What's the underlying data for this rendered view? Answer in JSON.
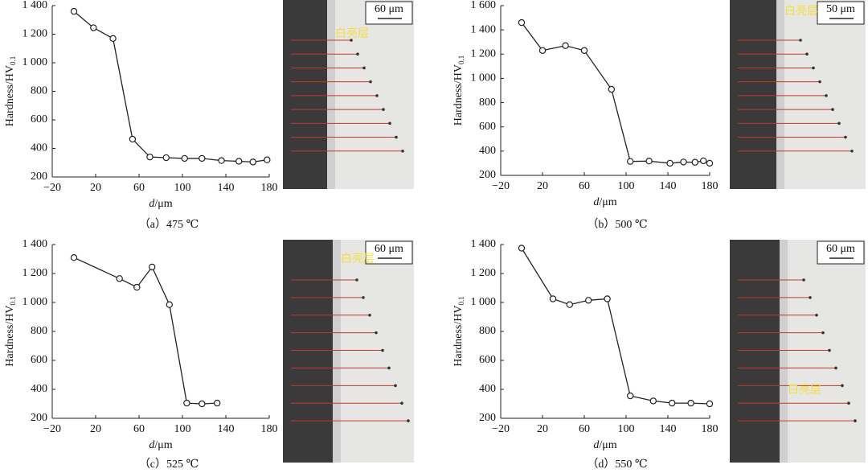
{
  "chart_data": [
    {
      "type": "line",
      "caption": "（a）475 ℃",
      "xlabel_var": "d",
      "xlabel_unit": "/μm",
      "ylabel": "Hardness/HV",
      "ylabel_subscript": "0.1",
      "scale_bar": "60 μm",
      "layer_label": "白亮层",
      "x": [
        0,
        18,
        36,
        54,
        70,
        85,
        102,
        118,
        136,
        152,
        165,
        178
      ],
      "series": [
        {
          "color": "#222222",
          "values": [
            1360,
            1245,
            1170,
            465,
            340,
            335,
            330,
            330,
            315,
            310,
            305,
            320
          ]
        }
      ],
      "xlim": [
        -20,
        180
      ],
      "xticks": [
        {
          "value": -20,
          "label": "−20"
        },
        20,
        60,
        100,
        140,
        180
      ],
      "ylim": [
        200,
        1400
      ],
      "yticks": [
        200,
        400,
        600,
        800,
        {
          "value": 1000,
          "label": "1 000"
        },
        {
          "value": 1200,
          "label": "1 200"
        },
        {
          "value": 1400,
          "label": "1 400"
        }
      ]
    },
    {
      "type": "line",
      "caption": "（b）500 ℃",
      "xlabel_var": "d",
      "xlabel_unit": "/μm",
      "ylabel": "Hardness/HV",
      "ylabel_subscript": "0.1",
      "scale_bar": "50 μm",
      "layer_label": "白亮层",
      "x": [
        0,
        20,
        42,
        60,
        86,
        104,
        122,
        142,
        155,
        166,
        174,
        180
      ],
      "series": [
        {
          "color": "#222222",
          "values": [
            1460,
            1230,
            1270,
            1230,
            910,
            315,
            318,
            300,
            310,
            308,
            320,
            300
          ]
        }
      ],
      "xlim": [
        -20,
        180
      ],
      "xticks": [
        {
          "value": -20,
          "label": "−20"
        },
        20,
        60,
        100,
        140,
        180
      ],
      "ylim": [
        200,
        1600
      ],
      "yticks": [
        200,
        400,
        600,
        800,
        {
          "value": 1000,
          "label": "1 000"
        },
        {
          "value": 1200,
          "label": "1 200"
        },
        {
          "value": 1400,
          "label": "1 400"
        },
        {
          "value": 1600,
          "label": "1 600"
        }
      ]
    },
    {
      "type": "line",
      "caption": "（c）525 ℃",
      "xlabel_var": "d",
      "xlabel_unit": "/μm",
      "ylabel": "Hardness/HV",
      "ylabel_subscript": "0.1",
      "scale_bar": "60 μm",
      "layer_label": "白亮层",
      "x": [
        0,
        42,
        58,
        72,
        88,
        104,
        118,
        132
      ],
      "series": [
        {
          "color": "#222222",
          "values": [
            1310,
            1165,
            1105,
            1245,
            985,
            305,
            300,
            305
          ]
        }
      ],
      "xlim": [
        -20,
        180
      ],
      "xticks": [
        {
          "value": -20,
          "label": "−20"
        },
        20,
        60,
        100,
        140,
        180
      ],
      "ylim": [
        200,
        1400
      ],
      "yticks": [
        200,
        400,
        600,
        800,
        {
          "value": 1000,
          "label": "1 000"
        },
        {
          "value": 1200,
          "label": "1 200"
        },
        {
          "value": 1400,
          "label": "1 400"
        }
      ]
    },
    {
      "type": "line",
      "caption": "（d）550 ℃",
      "xlabel_var": "d",
      "xlabel_unit": "/μm",
      "ylabel": "Hardness/HV",
      "ylabel_subscript": "0.1",
      "scale_bar": "60 μm",
      "layer_label": "白亮层",
      "x": [
        0,
        30,
        46,
        64,
        82,
        104,
        126,
        144,
        162,
        180
      ],
      "series": [
        {
          "color": "#222222",
          "values": [
            1375,
            1025,
            985,
            1015,
            1025,
            355,
            320,
            305,
            305,
            300
          ]
        }
      ],
      "xlim": [
        -20,
        180
      ],
      "xticks": [
        {
          "value": -20,
          "label": "−20"
        },
        20,
        60,
        100,
        140,
        180
      ],
      "ylim": [
        200,
        1400
      ],
      "yticks": [
        200,
        400,
        600,
        800,
        {
          "value": 1000,
          "label": "1 000"
        },
        {
          "value": 1200,
          "label": "1 200"
        },
        {
          "value": 1400,
          "label": "1 400"
        }
      ]
    }
  ]
}
